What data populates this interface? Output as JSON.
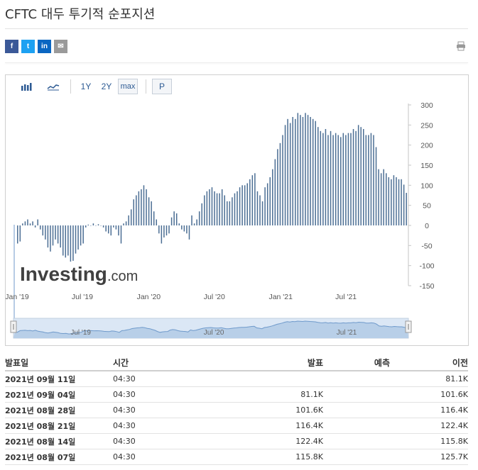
{
  "page": {
    "title": "CFTC 대두 투기적 순포지션"
  },
  "social": {
    "facebook": "f",
    "twitter": "t",
    "linkedin": "in",
    "mail": "✉"
  },
  "toolbar": {
    "range_1y": "1Y",
    "range_2y": "2Y",
    "range_max": "max",
    "p_label": "P"
  },
  "watermark": {
    "text_a": "Investing",
    "text_b": ".com"
  },
  "chart_data": {
    "type": "bar",
    "title": "",
    "xlabel": "",
    "ylabel": "",
    "ylim": [
      -150,
      300
    ],
    "y_ticks": [
      300,
      250,
      200,
      150,
      100,
      50,
      0,
      -50,
      -100,
      -150
    ],
    "x_tick_labels": [
      "Jan '19",
      "Jul '19",
      "Jan '20",
      "Jul '20",
      "Jan '21",
      "Jul '21"
    ],
    "navigator_labels": [
      "Jul '19",
      "Jul '20",
      "Jul '21"
    ],
    "grid": false,
    "bar_color": "#4a6d93",
    "x_unit": "week",
    "start": "2019-01-01",
    "values": [
      -45,
      -40,
      5,
      10,
      15,
      5,
      10,
      -5,
      15,
      -10,
      -25,
      -35,
      -55,
      -65,
      -50,
      -35,
      -45,
      -55,
      -75,
      -80,
      -75,
      -90,
      -88,
      -70,
      -60,
      -50,
      -45,
      -5,
      2,
      0,
      5,
      0,
      3,
      0,
      -5,
      -15,
      -20,
      -25,
      -5,
      -10,
      -25,
      -45,
      5,
      10,
      25,
      40,
      65,
      75,
      85,
      90,
      100,
      90,
      70,
      60,
      35,
      15,
      -20,
      -45,
      -30,
      -25,
      -20,
      20,
      35,
      30,
      5,
      -10,
      -15,
      -20,
      -35,
      25,
      5,
      15,
      35,
      55,
      75,
      85,
      90,
      95,
      85,
      80,
      80,
      90,
      75,
      60,
      60,
      70,
      80,
      85,
      95,
      100,
      100,
      105,
      115,
      125,
      130,
      85,
      75,
      60,
      95,
      105,
      120,
      140,
      165,
      190,
      205,
      225,
      250,
      265,
      255,
      270,
      265,
      280,
      275,
      270,
      280,
      275,
      270,
      265,
      260,
      245,
      235,
      230,
      240,
      225,
      235,
      225,
      230,
      225,
      220,
      230,
      225,
      230,
      230,
      240,
      235,
      250,
      245,
      240,
      225,
      225,
      230,
      225,
      195,
      140,
      130,
      140,
      130,
      120,
      115,
      125,
      120,
      115,
      115,
      101.6,
      81.1
    ],
    "table": {
      "headers": [
        "발표일",
        "시간",
        "발표",
        "예측",
        "이전"
      ],
      "rows": [
        [
          "2021년 09월 11일",
          "04:30",
          "",
          "",
          "81.1K"
        ],
        [
          "2021년 09월 04일",
          "04:30",
          "81.1K",
          "",
          "101.6K"
        ],
        [
          "2021년 08월 28일",
          "04:30",
          "101.6K",
          "",
          "116.4K"
        ],
        [
          "2021년 08월 21일",
          "04:30",
          "116.4K",
          "",
          "122.4K"
        ],
        [
          "2021년 08월 14일",
          "04:30",
          "122.4K",
          "",
          "115.8K"
        ],
        [
          "2021년 08월 07일",
          "04:30",
          "115.8K",
          "",
          "125.7K"
        ]
      ]
    }
  }
}
